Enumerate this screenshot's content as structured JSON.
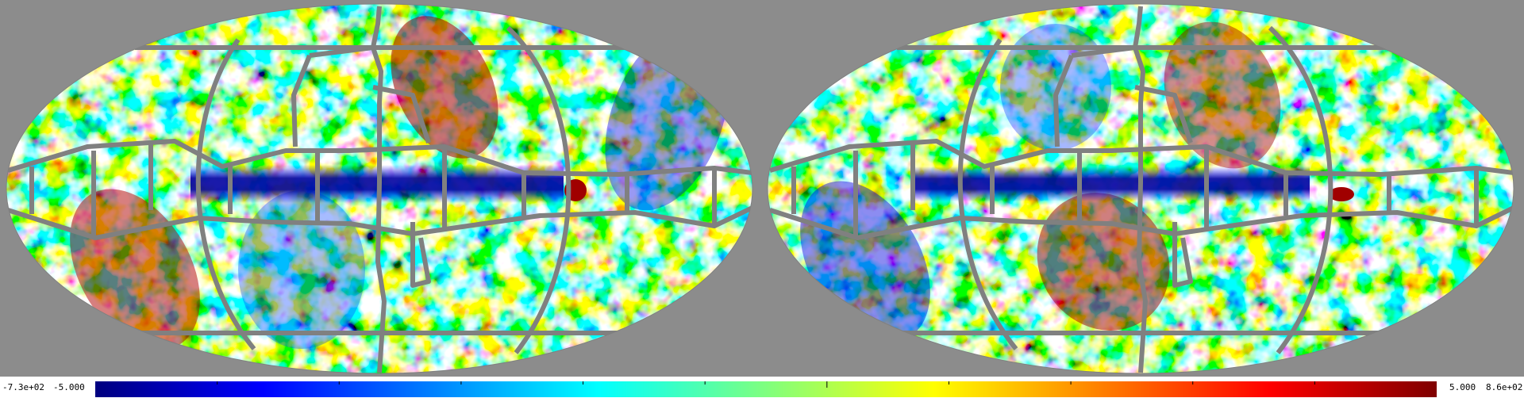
{
  "colors": {
    "background": "#8c8c8c",
    "mask": "#808080",
    "colormap": [
      "#00007f",
      "#0000ff",
      "#007fff",
      "#00ffff",
      "#7fff7f",
      "#ffff00",
      "#ff7f00",
      "#ff0000",
      "#7f0000"
    ]
  },
  "maps": [
    {
      "id": "left",
      "projection": "mollweide"
    },
    {
      "id": "right",
      "projection": "mollweide"
    }
  ],
  "colorbar": {
    "min_raw": "-7.3e+02",
    "min_clip": "-5.000",
    "max_clip": "5.000",
    "max_raw": "8.6e+02",
    "ticks": 11
  }
}
